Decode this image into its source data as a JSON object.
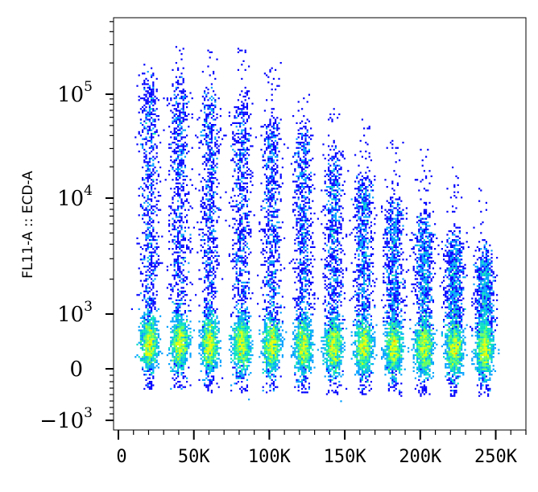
{
  "chart_data": {
    "type": "scatter",
    "title": "",
    "xlabel": "",
    "ylabel": "FL11-A :: ECD-A",
    "x_scale": "linear",
    "y_scale": "biexponential",
    "xlim": [
      0,
      270000
    ],
    "x_ticks": [
      {
        "value": 0,
        "label": "0"
      },
      {
        "value": 50000,
        "label": "50K"
      },
      {
        "value": 100000,
        "label": "100K"
      },
      {
        "value": 150000,
        "label": "150K"
      },
      {
        "value": 200000,
        "label": "200K"
      },
      {
        "value": 250000,
        "label": "250K"
      }
    ],
    "y_ticks": [
      {
        "value": -1000,
        "base": "−10",
        "exp": "3"
      },
      {
        "value": 0,
        "base": "0",
        "exp": ""
      },
      {
        "value": 1000,
        "base": "10",
        "exp": "3"
      },
      {
        "value": 10000,
        "base": "10",
        "exp": "4"
      },
      {
        "value": 100000,
        "base": "10",
        "exp": "5"
      }
    ],
    "colormap": [
      "#0000ff",
      "#00a0ff",
      "#00e0c0",
      "#60ff60",
      "#e0ff00",
      "#ffa000",
      "#ff0000"
    ],
    "populations": [
      {
        "x": 20000,
        "y_low": 500,
        "y_high_center": 40000,
        "y_max": 200000
      },
      {
        "x": 40000,
        "y_low": 480,
        "y_high_center": 35000,
        "y_max": 300000
      },
      {
        "x": 60000,
        "y_low": 470,
        "y_high_center": 30000,
        "y_max": 300000
      },
      {
        "x": 81000,
        "y_low": 460,
        "y_high_center": 25000,
        "y_max": 280000
      },
      {
        "x": 101000,
        "y_low": 450,
        "y_high_center": 18000,
        "y_max": 220000
      },
      {
        "x": 122000,
        "y_low": 440,
        "y_high_center": 12000,
        "y_max": 110000
      },
      {
        "x": 142000,
        "y_low": 430,
        "y_high_center": 8000,
        "y_max": 80000
      },
      {
        "x": 162000,
        "y_low": 420,
        "y_high_center": 5000,
        "y_max": 60000
      },
      {
        "x": 182000,
        "y_low": 410,
        "y_high_center": 3000,
        "y_max": 40000
      },
      {
        "x": 202000,
        "y_low": 400,
        "y_high_center": 2200,
        "y_max": 30000
      },
      {
        "x": 222000,
        "y_low": 400,
        "y_high_center": 1500,
        "y_max": 20000
      },
      {
        "x": 242000,
        "y_low": 390,
        "y_high_center": 1100,
        "y_max": 15000
      }
    ]
  }
}
